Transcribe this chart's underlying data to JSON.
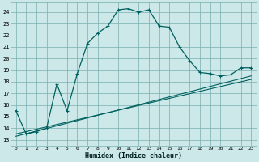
{
  "xlabel": "Humidex (Indice chaleur)",
  "ylabel": "",
  "bg_color": "#cce8e8",
  "grid_color": "#7aafaf",
  "line_color": "#006060",
  "xlim": [
    -0.5,
    23.5
  ],
  "ylim": [
    12.5,
    24.8
  ],
  "yticks": [
    13,
    14,
    15,
    16,
    17,
    18,
    19,
    20,
    21,
    22,
    23,
    24
  ],
  "xticks": [
    0,
    1,
    2,
    3,
    4,
    5,
    6,
    7,
    8,
    9,
    10,
    11,
    12,
    13,
    14,
    15,
    16,
    17,
    18,
    19,
    20,
    21,
    22,
    23
  ],
  "curve1_x": [
    0,
    1,
    2,
    3,
    4,
    5,
    6,
    7,
    8,
    9,
    10,
    11,
    12,
    13,
    14,
    15,
    16,
    17,
    18,
    19,
    20,
    21,
    22,
    23
  ],
  "curve1_y": [
    15.5,
    13.5,
    13.7,
    14.0,
    17.8,
    15.5,
    18.7,
    21.3,
    22.2,
    22.8,
    24.2,
    24.3,
    24.0,
    24.2,
    22.8,
    22.7,
    21.0,
    19.8,
    18.8,
    18.7,
    18.5,
    18.6,
    19.2,
    19.2
  ],
  "line1_x": [
    0,
    23
  ],
  "line1_y": [
    13.5,
    18.2
  ],
  "line2_x": [
    0,
    23
  ],
  "line2_y": [
    13.3,
    18.5
  ]
}
